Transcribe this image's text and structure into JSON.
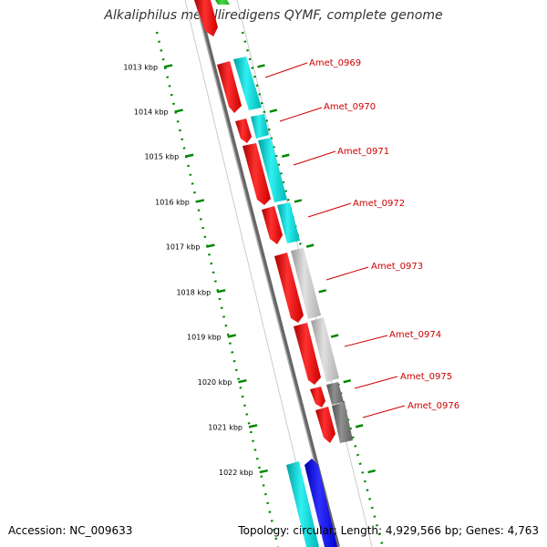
{
  "title": "Alkaliphilus metalliredigens QYMF, complete genome",
  "footer": {
    "accession": "Accession: NC_009633",
    "info": "Topology: circular; Length: 4,929,566 bp; Genes: 4,763"
  },
  "scale_ticks": [
    {
      "label": "1013 kbp",
      "t": 0.068
    },
    {
      "label": "1014 kbp",
      "t": 0.155
    },
    {
      "label": "1015 kbp",
      "t": 0.242
    },
    {
      "label": "1016 kbp",
      "t": 0.33
    },
    {
      "label": "1017 kbp",
      "t": 0.417
    },
    {
      "label": "1018 kbp",
      "t": 0.505
    },
    {
      "label": "1019 kbp",
      "t": 0.592
    },
    {
      "label": "1020 kbp",
      "t": 0.68
    },
    {
      "label": "1021 kbp",
      "t": 0.767
    },
    {
      "label": "1022 kbp",
      "t": 0.855
    }
  ],
  "genes": [
    {
      "label": "Amet_0969",
      "color": "#ff0000",
      "strand": "rev",
      "cog": "#00d6d6"
    },
    {
      "label": "Amet_0970",
      "color": "#ff0000",
      "strand": "rev",
      "cog": "#00d6d6"
    },
    {
      "label": "Amet_0971",
      "color": "#ff0000",
      "strand": "rev",
      "cog": "#00d6d6"
    },
    {
      "label": "Amet_0972",
      "color": "#ff0000",
      "strand": "rev",
      "cog": "#00d6d6"
    },
    {
      "label": "Amet_0973",
      "color": "#ff0000",
      "strand": "rev",
      "cog": "#c8c8c8"
    },
    {
      "label": "Amet_0974",
      "color": "#ff0000",
      "strand": "rev",
      "cog": "#c8c8c8"
    },
    {
      "label": "Amet_0975",
      "color": "#ff0000",
      "strand": "rev",
      "cog": "#707070"
    },
    {
      "label": "Amet_0976",
      "color": "#ff0000",
      "strand": "rev",
      "cog": "#707070"
    }
  ],
  "colors": {
    "backbone": "#888888",
    "tick_green": "#008800",
    "label_red": "#cc0000",
    "cyan": "#00d6d6",
    "blue": "#0000ff",
    "green": "#22bb22"
  }
}
